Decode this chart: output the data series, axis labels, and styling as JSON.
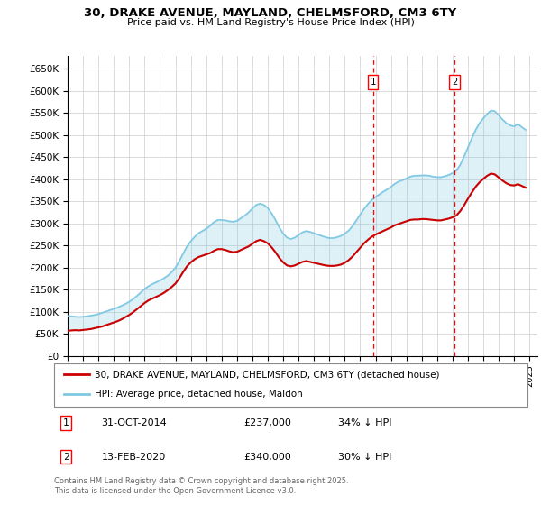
{
  "title": "30, DRAKE AVENUE, MAYLAND, CHELMSFORD, CM3 6TY",
  "subtitle": "Price paid vs. HM Land Registry's House Price Index (HPI)",
  "ylim": [
    0,
    680000
  ],
  "yticks": [
    0,
    50000,
    100000,
    150000,
    200000,
    250000,
    300000,
    350000,
    400000,
    450000,
    500000,
    550000,
    600000,
    650000
  ],
  "ytick_labels": [
    "£0",
    "£50K",
    "£100K",
    "£150K",
    "£200K",
    "£250K",
    "£300K",
    "£350K",
    "£400K",
    "£450K",
    "£500K",
    "£550K",
    "£600K",
    "£650K"
  ],
  "hpi_color": "#7ec8e3",
  "price_color": "#cc0000",
  "marker1_x": 2014.83,
  "marker2_x": 2020.12,
  "legend_line1": "30, DRAKE AVENUE, MAYLAND, CHELMSFORD, CM3 6TY (detached house)",
  "legend_line2": "HPI: Average price, detached house, Maldon",
  "annotation1_num": "1",
  "annotation1_date": "31-OCT-2014",
  "annotation1_price": "£237,000",
  "annotation1_hpi": "34% ↓ HPI",
  "annotation2_num": "2",
  "annotation2_date": "13-FEB-2020",
  "annotation2_price": "£340,000",
  "annotation2_hpi": "30% ↓ HPI",
  "footer": "Contains HM Land Registry data © Crown copyright and database right 2025.\nThis data is licensed under the Open Government Licence v3.0.",
  "hpi_data": [
    [
      1995.0,
      91000
    ],
    [
      1995.25,
      90000
    ],
    [
      1995.5,
      89000
    ],
    [
      1995.75,
      88500
    ],
    [
      1996.0,
      89000
    ],
    [
      1996.25,
      90000
    ],
    [
      1996.5,
      91500
    ],
    [
      1996.75,
      93000
    ],
    [
      1997.0,
      95000
    ],
    [
      1997.25,
      98000
    ],
    [
      1997.5,
      101000
    ],
    [
      1997.75,
      104000
    ],
    [
      1998.0,
      107000
    ],
    [
      1998.25,
      110000
    ],
    [
      1998.5,
      114000
    ],
    [
      1998.75,
      118000
    ],
    [
      1999.0,
      123000
    ],
    [
      1999.25,
      129000
    ],
    [
      1999.5,
      136000
    ],
    [
      1999.75,
      144000
    ],
    [
      2000.0,
      152000
    ],
    [
      2000.25,
      158000
    ],
    [
      2000.5,
      163000
    ],
    [
      2000.75,
      167000
    ],
    [
      2001.0,
      171000
    ],
    [
      2001.25,
      176000
    ],
    [
      2001.5,
      182000
    ],
    [
      2001.75,
      190000
    ],
    [
      2002.0,
      200000
    ],
    [
      2002.25,
      215000
    ],
    [
      2002.5,
      232000
    ],
    [
      2002.75,
      248000
    ],
    [
      2003.0,
      260000
    ],
    [
      2003.25,
      270000
    ],
    [
      2003.5,
      278000
    ],
    [
      2003.75,
      283000
    ],
    [
      2004.0,
      288000
    ],
    [
      2004.25,
      295000
    ],
    [
      2004.5,
      303000
    ],
    [
      2004.75,
      308000
    ],
    [
      2005.0,
      308000
    ],
    [
      2005.25,
      307000
    ],
    [
      2005.5,
      305000
    ],
    [
      2005.75,
      304000
    ],
    [
      2006.0,
      306000
    ],
    [
      2006.25,
      312000
    ],
    [
      2006.5,
      318000
    ],
    [
      2006.75,
      325000
    ],
    [
      2007.0,
      334000
    ],
    [
      2007.25,
      342000
    ],
    [
      2007.5,
      345000
    ],
    [
      2007.75,
      342000
    ],
    [
      2008.0,
      335000
    ],
    [
      2008.25,
      323000
    ],
    [
      2008.5,
      308000
    ],
    [
      2008.75,
      291000
    ],
    [
      2009.0,
      277000
    ],
    [
      2009.25,
      268000
    ],
    [
      2009.5,
      265000
    ],
    [
      2009.75,
      268000
    ],
    [
      2010.0,
      274000
    ],
    [
      2010.25,
      280000
    ],
    [
      2010.5,
      283000
    ],
    [
      2010.75,
      281000
    ],
    [
      2011.0,
      278000
    ],
    [
      2011.25,
      275000
    ],
    [
      2011.5,
      272000
    ],
    [
      2011.75,
      269000
    ],
    [
      2012.0,
      267000
    ],
    [
      2012.25,
      267000
    ],
    [
      2012.5,
      269000
    ],
    [
      2012.75,
      272000
    ],
    [
      2013.0,
      277000
    ],
    [
      2013.25,
      284000
    ],
    [
      2013.5,
      294000
    ],
    [
      2013.75,
      307000
    ],
    [
      2014.0,
      320000
    ],
    [
      2014.25,
      333000
    ],
    [
      2014.5,
      344000
    ],
    [
      2014.75,
      353000
    ],
    [
      2015.0,
      360000
    ],
    [
      2015.25,
      366000
    ],
    [
      2015.5,
      372000
    ],
    [
      2015.75,
      377000
    ],
    [
      2016.0,
      383000
    ],
    [
      2016.25,
      390000
    ],
    [
      2016.5,
      395000
    ],
    [
      2016.75,
      398000
    ],
    [
      2017.0,
      402000
    ],
    [
      2017.25,
      406000
    ],
    [
      2017.5,
      408000
    ],
    [
      2017.75,
      408000
    ],
    [
      2018.0,
      409000
    ],
    [
      2018.25,
      409000
    ],
    [
      2018.5,
      408000
    ],
    [
      2018.75,
      406000
    ],
    [
      2019.0,
      405000
    ],
    [
      2019.25,
      405000
    ],
    [
      2019.5,
      407000
    ],
    [
      2019.75,
      410000
    ],
    [
      2020.0,
      414000
    ],
    [
      2020.25,
      420000
    ],
    [
      2020.5,
      433000
    ],
    [
      2020.75,
      452000
    ],
    [
      2021.0,
      472000
    ],
    [
      2021.25,
      493000
    ],
    [
      2021.5,
      512000
    ],
    [
      2021.75,
      527000
    ],
    [
      2022.0,
      538000
    ],
    [
      2022.25,
      548000
    ],
    [
      2022.5,
      556000
    ],
    [
      2022.75,
      554000
    ],
    [
      2023.0,
      545000
    ],
    [
      2023.25,
      535000
    ],
    [
      2023.5,
      527000
    ],
    [
      2023.75,
      522000
    ],
    [
      2024.0,
      520000
    ],
    [
      2024.25,
      525000
    ],
    [
      2024.5,
      518000
    ],
    [
      2024.75,
      512000
    ]
  ],
  "price_data": [
    [
      1995.0,
      57000
    ],
    [
      1995.25,
      58000
    ],
    [
      1995.5,
      58500
    ],
    [
      1995.75,
      58000
    ],
    [
      1996.0,
      59000
    ],
    [
      1996.25,
      60000
    ],
    [
      1996.5,
      61000
    ],
    [
      1996.75,
      63000
    ],
    [
      1997.0,
      65000
    ],
    [
      1997.25,
      67000
    ],
    [
      1997.5,
      70000
    ],
    [
      1997.75,
      73000
    ],
    [
      1998.0,
      76000
    ],
    [
      1998.25,
      79000
    ],
    [
      1998.5,
      83000
    ],
    [
      1998.75,
      88000
    ],
    [
      1999.0,
      93000
    ],
    [
      1999.25,
      99000
    ],
    [
      1999.5,
      106000
    ],
    [
      1999.75,
      113000
    ],
    [
      2000.0,
      120000
    ],
    [
      2000.25,
      126000
    ],
    [
      2000.5,
      130000
    ],
    [
      2000.75,
      134000
    ],
    [
      2001.0,
      138000
    ],
    [
      2001.25,
      143000
    ],
    [
      2001.5,
      149000
    ],
    [
      2001.75,
      156000
    ],
    [
      2002.0,
      164000
    ],
    [
      2002.25,
      176000
    ],
    [
      2002.5,
      190000
    ],
    [
      2002.75,
      203000
    ],
    [
      2003.0,
      212000
    ],
    [
      2003.25,
      219000
    ],
    [
      2003.5,
      224000
    ],
    [
      2003.75,
      227000
    ],
    [
      2004.0,
      230000
    ],
    [
      2004.25,
      233000
    ],
    [
      2004.5,
      238000
    ],
    [
      2004.75,
      242000
    ],
    [
      2005.0,
      242000
    ],
    [
      2005.25,
      240000
    ],
    [
      2005.5,
      237000
    ],
    [
      2005.75,
      235000
    ],
    [
      2006.0,
      236000
    ],
    [
      2006.25,
      240000
    ],
    [
      2006.5,
      244000
    ],
    [
      2006.75,
      248000
    ],
    [
      2007.0,
      254000
    ],
    [
      2007.25,
      260000
    ],
    [
      2007.5,
      263000
    ],
    [
      2007.75,
      260000
    ],
    [
      2008.0,
      255000
    ],
    [
      2008.25,
      246000
    ],
    [
      2008.5,
      235000
    ],
    [
      2008.75,
      222000
    ],
    [
      2009.0,
      212000
    ],
    [
      2009.25,
      205000
    ],
    [
      2009.5,
      203000
    ],
    [
      2009.75,
      205000
    ],
    [
      2010.0,
      209000
    ],
    [
      2010.25,
      213000
    ],
    [
      2010.5,
      215000
    ],
    [
      2010.75,
      213000
    ],
    [
      2011.0,
      211000
    ],
    [
      2011.25,
      209000
    ],
    [
      2011.5,
      207000
    ],
    [
      2011.75,
      205000
    ],
    [
      2012.0,
      204000
    ],
    [
      2012.25,
      204000
    ],
    [
      2012.5,
      205000
    ],
    [
      2012.75,
      207000
    ],
    [
      2013.0,
      211000
    ],
    [
      2013.25,
      217000
    ],
    [
      2013.5,
      225000
    ],
    [
      2013.75,
      235000
    ],
    [
      2014.0,
      245000
    ],
    [
      2014.25,
      255000
    ],
    [
      2014.5,
      263000
    ],
    [
      2014.75,
      270000
    ],
    [
      2015.0,
      275000
    ],
    [
      2015.25,
      279000
    ],
    [
      2015.5,
      283000
    ],
    [
      2015.75,
      287000
    ],
    [
      2016.0,
      291000
    ],
    [
      2016.25,
      296000
    ],
    [
      2016.5,
      299000
    ],
    [
      2016.75,
      302000
    ],
    [
      2017.0,
      305000
    ],
    [
      2017.25,
      308000
    ],
    [
      2017.5,
      309000
    ],
    [
      2017.75,
      309000
    ],
    [
      2018.0,
      310000
    ],
    [
      2018.25,
      310000
    ],
    [
      2018.5,
      309000
    ],
    [
      2018.75,
      308000
    ],
    [
      2019.0,
      307000
    ],
    [
      2019.25,
      307000
    ],
    [
      2019.5,
      309000
    ],
    [
      2019.75,
      311000
    ],
    [
      2020.0,
      314000
    ],
    [
      2020.25,
      318000
    ],
    [
      2020.5,
      328000
    ],
    [
      2020.75,
      341000
    ],
    [
      2021.0,
      356000
    ],
    [
      2021.25,
      370000
    ],
    [
      2021.5,
      383000
    ],
    [
      2021.75,
      393000
    ],
    [
      2022.0,
      401000
    ],
    [
      2022.25,
      408000
    ],
    [
      2022.5,
      413000
    ],
    [
      2022.75,
      411000
    ],
    [
      2023.0,
      404000
    ],
    [
      2023.25,
      397000
    ],
    [
      2023.5,
      391000
    ],
    [
      2023.75,
      387000
    ],
    [
      2024.0,
      386000
    ],
    [
      2024.25,
      389000
    ],
    [
      2024.5,
      385000
    ],
    [
      2024.75,
      381000
    ]
  ]
}
